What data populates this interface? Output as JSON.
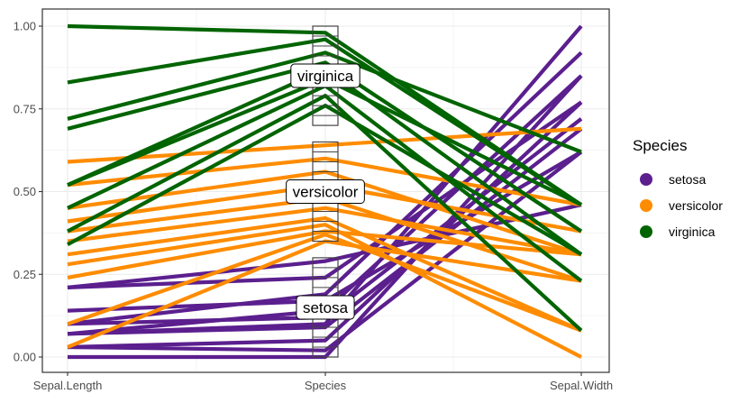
{
  "chart_data": {
    "type": "line",
    "subtype": "parallel-coordinates",
    "title": "",
    "xlabel": "",
    "ylabel": "",
    "categories": [
      "Sepal.Length",
      "Species",
      "Sepal.Width"
    ],
    "ylim": [
      0,
      1.03
    ],
    "yticks": [
      "0.00",
      "0.25",
      "0.50",
      "0.75",
      "1.00"
    ],
    "ytick_values": [
      0,
      0.25,
      0.5,
      0.75,
      1.0
    ],
    "grid": true,
    "legend": {
      "title": "Species",
      "placement": "right",
      "entries": [
        {
          "name": "setosa",
          "color": "#5b1f8e"
        },
        {
          "name": "versicolor",
          "color": "#ff8c00"
        },
        {
          "name": "virginica",
          "color": "#006400"
        }
      ]
    },
    "group_labels": [
      {
        "name": "setosa",
        "value": 0.15
      },
      {
        "name": "versicolor",
        "value": 0.5
      },
      {
        "name": "virginica",
        "value": 0.85
      }
    ],
    "species_boxes": [
      {
        "name": "setosa",
        "min": 0.0,
        "max": 0.3
      },
      {
        "name": "versicolor",
        "min": 0.35,
        "max": 0.65
      },
      {
        "name": "virginica",
        "min": 0.7,
        "max": 1.0
      }
    ],
    "series": [
      {
        "name": "setosa",
        "color": "#5b1f8e",
        "lines": [
          [
            0.21,
            0.29,
            0.46
          ],
          [
            0.21,
            0.24,
            0.77
          ],
          [
            0.1,
            0.19,
            0.92
          ],
          [
            0.07,
            0.14,
            0.85
          ],
          [
            0.07,
            0.1,
            1.0
          ],
          [
            0.03,
            0.05,
            0.77
          ],
          [
            0.0,
            0.0,
            0.85
          ],
          [
            0.03,
            0.02,
            0.62
          ],
          [
            0.07,
            0.09,
            0.69
          ],
          [
            0.1,
            0.12,
            0.72
          ],
          [
            0.14,
            0.17,
            0.62
          ]
        ]
      },
      {
        "name": "versicolor",
        "color": "#ff8c00",
        "lines": [
          [
            0.59,
            0.64,
            0.69
          ],
          [
            0.52,
            0.6,
            0.46
          ],
          [
            0.45,
            0.56,
            0.31
          ],
          [
            0.41,
            0.52,
            0.38
          ],
          [
            0.38,
            0.48,
            0.23
          ],
          [
            0.35,
            0.45,
            0.31
          ],
          [
            0.31,
            0.42,
            0.08
          ],
          [
            0.28,
            0.4,
            0.0
          ],
          [
            0.24,
            0.38,
            0.31
          ],
          [
            0.1,
            0.37,
            0.08
          ],
          [
            0.03,
            0.35,
            0.23
          ]
        ]
      },
      {
        "name": "virginica",
        "color": "#006400",
        "lines": [
          [
            1.0,
            0.98,
            0.46
          ],
          [
            0.83,
            0.96,
            0.46
          ],
          [
            0.72,
            0.92,
            0.62
          ],
          [
            0.69,
            0.89,
            0.38
          ],
          [
            0.52,
            0.87,
            0.31
          ],
          [
            0.52,
            0.84,
            0.46
          ],
          [
            0.45,
            0.82,
            0.23
          ],
          [
            0.38,
            0.79,
            0.08
          ],
          [
            0.34,
            0.76,
            0.31
          ]
        ]
      }
    ]
  }
}
